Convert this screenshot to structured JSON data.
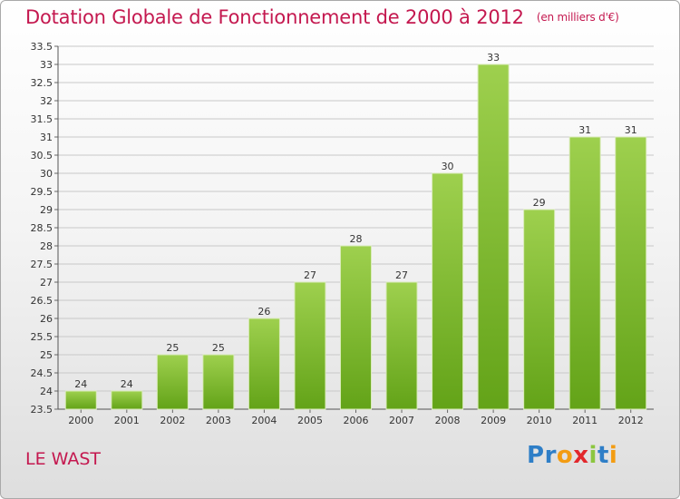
{
  "header": {
    "title": "Dotation Globale de Fonctionnement de 2000 à 2012",
    "unit": "(en milliers d'€)"
  },
  "footer": {
    "commune": "LE WAST",
    "logo_letters": [
      "P",
      "r",
      "o",
      "x",
      "i",
      "t",
      "i"
    ]
  },
  "colors": {
    "title": "#c4184f",
    "bar_top": "#9ed04e",
    "bar_bottom": "#63a318",
    "grid": "#c8c8c8",
    "logo": [
      "#2e7ec7",
      "#2e7ec7",
      "#f39c12",
      "#e2272b",
      "#8cc63f",
      "#2e7ec7",
      "#f39c12"
    ]
  },
  "chart_data": {
    "type": "bar",
    "title": "Dotation Globale de Fonctionnement de 2000 à 2012",
    "subtitle": "(en milliers d'€)",
    "xlabel": "",
    "ylabel": "",
    "categories": [
      "2000",
      "2001",
      "2002",
      "2003",
      "2004",
      "2005",
      "2006",
      "2007",
      "2008",
      "2009",
      "2010",
      "2011",
      "2012"
    ],
    "values": [
      24,
      24,
      25,
      25,
      26,
      27,
      28,
      27,
      30,
      33,
      29,
      31,
      31
    ],
    "data_labels": [
      "24",
      "24",
      "25",
      "25",
      "26",
      "27",
      "28",
      "27",
      "30",
      "33",
      "29",
      "31",
      "31"
    ],
    "ylim": [
      23.5,
      33.5
    ],
    "yticks": [
      23.5,
      24,
      24.5,
      25,
      25.5,
      26,
      26.5,
      27,
      27.5,
      28,
      28.5,
      29,
      29.5,
      30,
      30.5,
      31,
      31.5,
      32,
      32.5,
      33,
      33.5
    ],
    "ytick_labels": [
      "23.5",
      "24",
      "24.5",
      "25",
      "25.5",
      "26",
      "26.5",
      "27",
      "27.5",
      "28",
      "28.5",
      "29",
      "29.5",
      "30",
      "30.5",
      "31",
      "31.5",
      "32",
      "32.5",
      "33",
      "33.5"
    ],
    "grid": true,
    "legend": "none"
  }
}
